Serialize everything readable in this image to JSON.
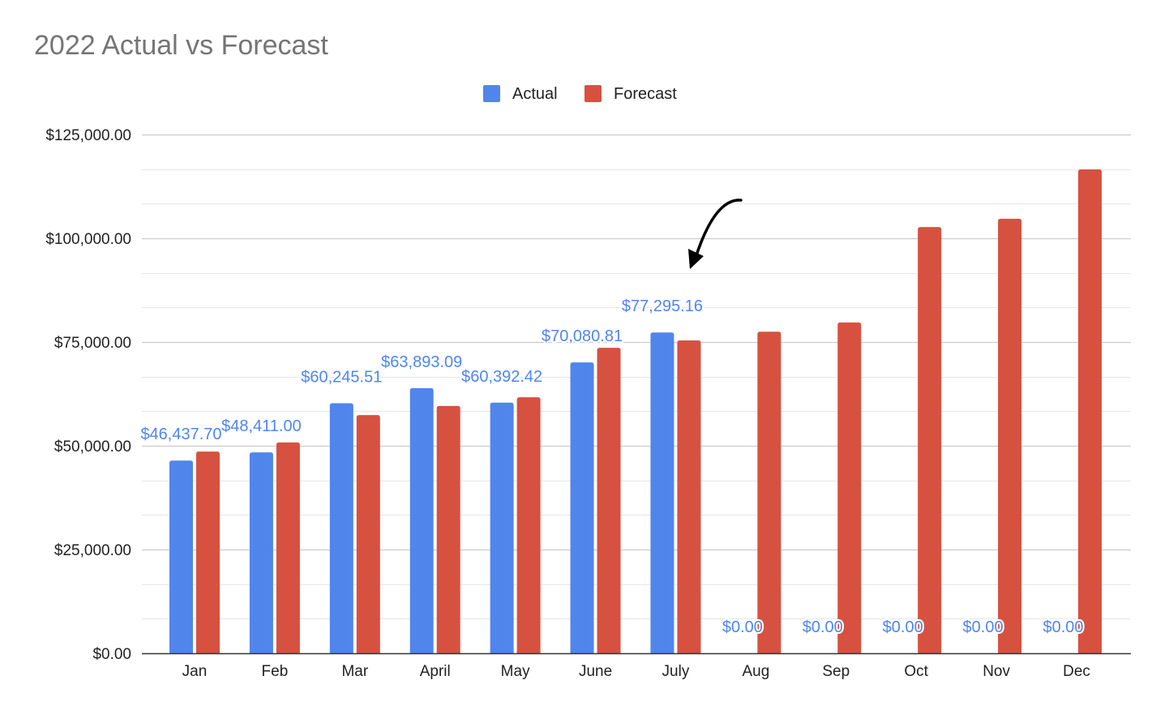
{
  "chart_data": {
    "type": "bar",
    "title": "2022 Actual vs Forecast",
    "xlabel": "",
    "ylabel": "",
    "ylim": [
      0,
      125000
    ],
    "yticks": [
      0,
      25000,
      50000,
      75000,
      100000,
      125000
    ],
    "ytick_labels": [
      "$0.00",
      "$25,000.00",
      "$50,000.00",
      "$75,000.00",
      "$100,000.00",
      "$125,000.00"
    ],
    "grid": true,
    "legend_position": "top-center",
    "categories": [
      "Jan",
      "Feb",
      "Mar",
      "April",
      "May",
      "June",
      "July",
      "Aug",
      "Sep",
      "Oct",
      "Nov",
      "Dec"
    ],
    "series": [
      {
        "name": "Actual",
        "color": "#5086ec",
        "values": [
          46437.7,
          48411.0,
          60245.51,
          63893.09,
          60392.42,
          70080.81,
          77295.16,
          0,
          0,
          0,
          0,
          0
        ],
        "data_labels": [
          "$46,437.70",
          "$48,411.00",
          "$60,245.51",
          "$63,893.09",
          "$60,392.42",
          "$70,080.81",
          "$77,295.16",
          "$0.00",
          "$0.00",
          "$0.00",
          "$0.00",
          "$0.00"
        ]
      },
      {
        "name": "Forecast",
        "color": "#d75140",
        "values": [
          48600,
          50800,
          57400,
          59600,
          61700,
          73600,
          75400,
          77500,
          79700,
          102700,
          104700,
          116600
        ]
      }
    ],
    "annotations": [
      "arrow pointing at July"
    ]
  }
}
